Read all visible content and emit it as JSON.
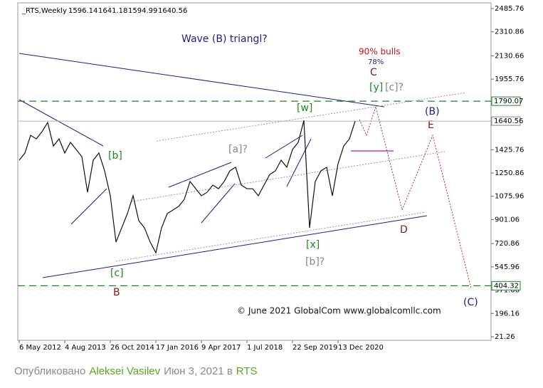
{
  "chart_data": {
    "type": "line",
    "title": "_RTS,Weekly",
    "ohlc": [
      1596.14,
      1641.18,
      1594.99,
      1640.56
    ],
    "categories": [
      "6 May 2012",
      null,
      null,
      null,
      null,
      null,
      null,
      null,
      "4 Aug 2013",
      null,
      null,
      null,
      null,
      null,
      null,
      null,
      "26 Oct 2014",
      null,
      null,
      null,
      null,
      null,
      null,
      null,
      "17 Jan 2016",
      null,
      null,
      null,
      null,
      null,
      null,
      null,
      "9 Apr 2017",
      null,
      null,
      null,
      null,
      null,
      null,
      null,
      "1 Jul 2018",
      null,
      null,
      null,
      null,
      null,
      null,
      null,
      "22 Sep 2019",
      null,
      null,
      null,
      null,
      null,
      null,
      null,
      "13 Dec 2020",
      null,
      null,
      null,
      null,
      null,
      null,
      null,
      null,
      null,
      null,
      null,
      null,
      null,
      null,
      null,
      null,
      null,
      null,
      null,
      null,
      null,
      null,
      null,
      null,
      null,
      null
    ],
    "series": [
      {
        "name": "RTS",
        "color": "#111111",
        "values": [
          1347,
          1401,
          1534,
          1507,
          1561,
          1630,
          1454,
          1507,
          1401,
          1481,
          1427,
          1374,
          1106,
          1347,
          1401,
          1267,
          1080,
          732,
          839,
          946,
          1080,
          893,
          839,
          732,
          652,
          839,
          946,
          973,
          1000,
          1053,
          1187,
          1133,
          1080,
          1106,
          1160,
          1133,
          1187,
          1267,
          1294,
          1160,
          1133,
          1133,
          1080,
          1160,
          1240,
          1267,
          1347,
          1294,
          1427,
          1481,
          1645,
          839,
          1187,
          1267,
          1294,
          1080,
          1320,
          1454,
          1507,
          1640,
          null,
          null,
          null,
          null,
          null,
          null,
          null,
          null,
          null,
          null,
          null,
          null,
          null,
          null,
          null,
          null,
          null,
          null,
          null,
          null,
          null,
          null,
          null
        ]
      }
    ],
    "ylim": [
      21.26,
      2485.76
    ],
    "yticks": [
      2485.76,
      2310.86,
      2130.66,
      1955.76,
      1425.76,
      1250.86,
      1075.96,
      901.06,
      720.86,
      545.96,
      371.06,
      196.16,
      21.26
    ],
    "levels": [
      {
        "value": 1790.07,
        "color": "#1a8a1a"
      },
      {
        "value": 404.32,
        "color": "#1a8a1a"
      },
      {
        "value": 1640.56,
        "color": "#b0b0b0"
      }
    ],
    "annotations": [
      "Wave (B) triangl?",
      "90% bulls",
      "78%",
      "C",
      "[y]",
      "[c]?",
      "[w]",
      "(B)",
      "E",
      "[b]",
      "[a]?",
      "D",
      "[x]",
      "[b]?",
      "[c]",
      "B",
      "© June 2021 GlobalCom www.globalcomllc.com",
      "(C)"
    ]
  },
  "footer": {
    "prefix": "Опубликовано",
    "author": "Aleksei Vasilev",
    "date": "Июн 3, 2021 в",
    "symbol": "RTS"
  }
}
